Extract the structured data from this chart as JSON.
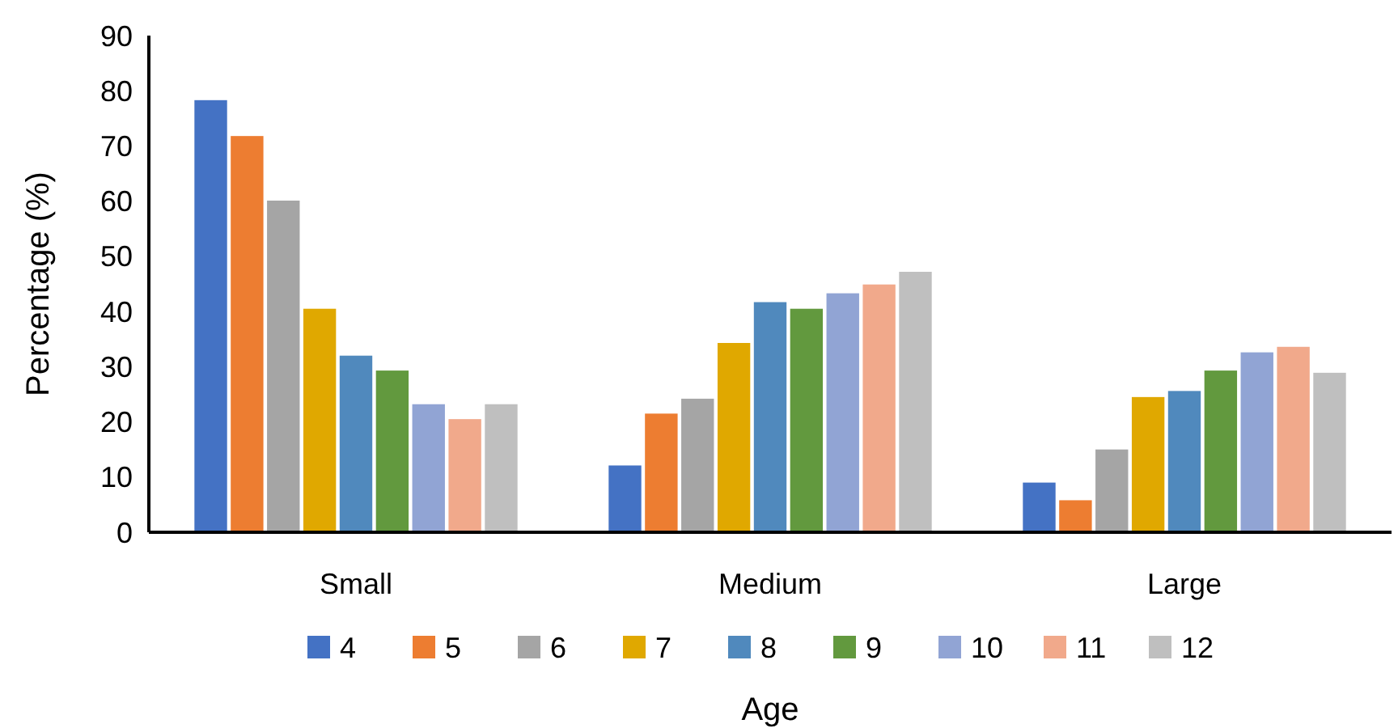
{
  "chart_data": {
    "type": "bar",
    "xlabel": "Age",
    "ylabel": "Percentage (%)",
    "categories": [
      "Small",
      "Medium",
      "Large"
    ],
    "ylim": [
      0,
      90
    ],
    "yticks": [
      0,
      10,
      20,
      30,
      40,
      50,
      60,
      70,
      80,
      90
    ],
    "grid": false,
    "legend": "bottom",
    "series": [
      {
        "name": "4",
        "color": "#4472c4",
        "values": [
          78.3,
          12.1,
          9.0
        ]
      },
      {
        "name": "5",
        "color": "#ed7d31",
        "values": [
          71.8,
          21.5,
          5.8
        ]
      },
      {
        "name": "6",
        "color": "#a5a5a5",
        "values": [
          60.1,
          24.2,
          15.0
        ]
      },
      {
        "name": "7",
        "color": "#e0a800",
        "values": [
          40.5,
          34.3,
          24.5
        ]
      },
      {
        "name": "8",
        "color": "#5089bd",
        "values": [
          32.0,
          41.7,
          25.6
        ]
      },
      {
        "name": "9",
        "color": "#62993e",
        "values": [
          29.3,
          40.5,
          29.3
        ]
      },
      {
        "name": "10",
        "color": "#91a4d4",
        "values": [
          23.2,
          43.3,
          32.6
        ]
      },
      {
        "name": "11",
        "color": "#f1a98b",
        "values": [
          20.5,
          44.9,
          33.6
        ]
      },
      {
        "name": "12",
        "color": "#bfbfbf",
        "values": [
          23.2,
          47.2,
          28.9
        ]
      }
    ]
  }
}
